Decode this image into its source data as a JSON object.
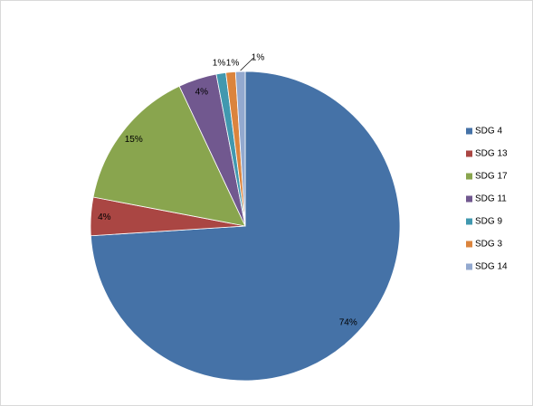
{
  "chart_data": {
    "type": "pie",
    "categories": [
      "SDG 4",
      "SDG 13",
      "SDG 17",
      "SDG 11",
      "SDG 9",
      "SDG 3",
      "SDG 14"
    ],
    "values": [
      74,
      4,
      15,
      4,
      1,
      1,
      1
    ],
    "value_labels": [
      "74%",
      "4%",
      "15%",
      "4%",
      "1%",
      "1%",
      "1%"
    ],
    "colors": [
      "#4572A7",
      "#AA4643",
      "#89A54E",
      "#71588F",
      "#4198AF",
      "#DB843D",
      "#93A9CF"
    ],
    "legend": "right"
  }
}
